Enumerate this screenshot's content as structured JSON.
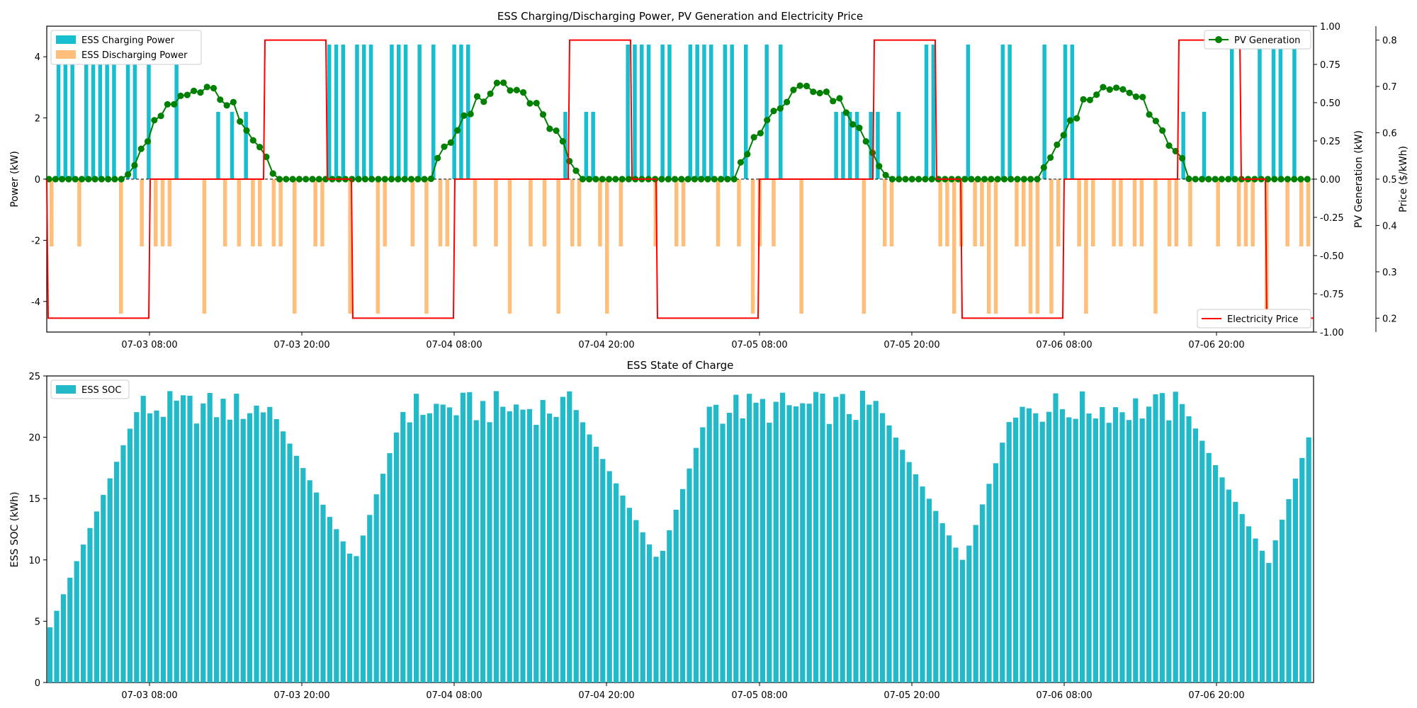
{
  "chart_data": [
    {
      "type": "bar+line+step",
      "title": "ESS Charging/Discharging Power, PV Generation and Electricity Price",
      "ylabel": "Power (kW)",
      "ylabel_right": "PV Generation (kW)",
      "ylabel_right2": "Price ($/kWh)",
      "xlim_hours": [
        0,
        95
      ],
      "ylim": [
        -5,
        5
      ],
      "ylim_right": [
        -1,
        1
      ],
      "ylim_right2": [
        0.17,
        0.83
      ],
      "x_ticks": [
        "07-03 08:00",
        "07-03 20:00",
        "07-04 08:00",
        "07-04 20:00",
        "07-05 08:00",
        "07-05 20:00",
        "07-06 08:00",
        "07-06 20:00"
      ],
      "y_ticks": [
        -4,
        -2,
        0,
        2,
        4
      ],
      "y_ticks_right": [
        "-1.00",
        "-0.75",
        "-0.50",
        "-0.25",
        "0.00",
        "0.25",
        "0.50",
        "0.75",
        "1.00"
      ],
      "y_ticks_right2": [
        "0.2",
        "0.3",
        "0.4",
        "0.5",
        "0.6",
        "0.7",
        "0.8"
      ],
      "legend_upper_left": [
        "ESS Charging Power",
        "ESS Discharging Power"
      ],
      "legend_upper_right": [
        "PV Generation"
      ],
      "legend_lower_right": [
        "Electricity Price"
      ],
      "colors": {
        "charge": "#17becf",
        "discharge": "#ffbe7a",
        "pv": "#008000",
        "price": "#ff0000"
      },
      "series": [
        {
          "name": "ESS Charging Power",
          "values": [
            4.4,
            4.4,
            4.4,
            4.4,
            4.4,
            4.4,
            4.4,
            4.4,
            4.4,
            4.4,
            4.4,
            4.4,
            4.4,
            4.4,
            4.4,
            4.4,
            4.4,
            4.4,
            4.4,
            4.4,
            4.4,
            4.4,
            4.4,
            4.4,
            4.4,
            4.4,
            4.4,
            4.4,
            4.4,
            4.4,
            4.4,
            4.4,
            4.4,
            4.4,
            4.4,
            4.4,
            4.4,
            4.4,
            4.4,
            4.4,
            4.4,
            4.4,
            4.4,
            4.4,
            4.4,
            4.4,
            4.4,
            4.4,
            4.4,
            4.4,
            4.4,
            4.4,
            4.4,
            4.4,
            4.4,
            4.4,
            4.4,
            4.4,
            4.4,
            4.4,
            4.4,
            4.4,
            4.4,
            4.4,
            4.4,
            4.4,
            4.4,
            4.4,
            4.4,
            4.4,
            4.4,
            4.4,
            4.4,
            4.4,
            4.4,
            4.4,
            4.4,
            4.4,
            4.4,
            4.4,
            4.4,
            4.4,
            4.4,
            4.4,
            4.4,
            4.4,
            4.4,
            4.4,
            4.4,
            4.4,
            4.4,
            4.4,
            4.4,
            4.4,
            4.4,
            4.4,
            4.4,
            4.4,
            4.4,
            4.4,
            4.4,
            4.4,
            4.4,
            4.4,
            4.4,
            4.4,
            4.4,
            4.4,
            4.4,
            4.4,
            4.4,
            4.4,
            4.4,
            4.4,
            4.4,
            4.4,
            4.4,
            4.4,
            4.4,
            4.4,
            4.4,
            4.4,
            4.4,
            4.4,
            4.4,
            4.4,
            4.4,
            4.4,
            4.4,
            4.4,
            4.4,
            4.4,
            4.4,
            4.4,
            4.4,
            4.4,
            4.4,
            4.4,
            4.4,
            4.4,
            4.4,
            4.4,
            4.4,
            4.4,
            4.4,
            4.4,
            4.4,
            4.4,
            4.4,
            4.4,
            4.4,
            4.4,
            4.4,
            4.4,
            4.4,
            4.4,
            4.4,
            4.4,
            4.4,
            4.4,
            4.4,
            4.4,
            4.4,
            4.4,
            4.4,
            4.4,
            4.4,
            4.4,
            4.4,
            4.4,
            4.4,
            4.4,
            4.4,
            4.4,
            4.4,
            4.4,
            4.4,
            4.4,
            4.4,
            4.4,
            4.4,
            4.4,
            4.4,
            4.4,
            4.4,
            4.4,
            4.4,
            4.4,
            4.4,
            4.4,
            4.4,
            4.4,
            4.4,
            4.4,
            4.4,
            4.4,
            4.4,
            4.4,
            4.4,
            4.4,
            4.4,
            4.4,
            4.4,
            4.4,
            4.4,
            4.4,
            4.4,
            4.4
          ],
          "pattern": "charge"
        },
        {
          "name": "PV Generation",
          "x_hours": [
            0,
            0.5,
            1,
            1.5,
            2,
            2.5,
            3,
            3.5,
            4,
            4.5,
            5,
            5.5,
            6,
            6.5,
            7,
            7.5,
            8,
            8.5,
            9,
            9.5,
            10,
            10.5,
            11,
            11.5,
            12,
            12.5,
            13,
            13.5,
            14,
            14.5,
            15,
            15.5,
            16,
            16.5
          ],
          "values": [
            0,
            0,
            0,
            0,
            0,
            0,
            0,
            0,
            0,
            0,
            0,
            0,
            0,
            0,
            0.04,
            0.09,
            0.17,
            0.25,
            0.36,
            0.41,
            0.49,
            0.54,
            0.58,
            0.6,
            0.6,
            0.6,
            0.56,
            0.38,
            0.42,
            0.4,
            0.2,
            0.01,
            0,
            0
          ]
        }
      ]
    },
    {
      "type": "bar",
      "title": "ESS State of Charge",
      "ylabel": "ESS SOC (kWh)",
      "ylim": [
        0,
        25
      ],
      "y_ticks": [
        0,
        5,
        10,
        15,
        20,
        25
      ],
      "x_ticks": [
        "07-03 08:00",
        "07-03 20:00",
        "07-04 08:00",
        "07-04 20:00",
        "07-05 08:00",
        "07-05 20:00",
        "07-06 08:00",
        "07-06 20:00"
      ],
      "legend": [
        "ESS SOC"
      ],
      "color": "#22b9c8"
    }
  ]
}
